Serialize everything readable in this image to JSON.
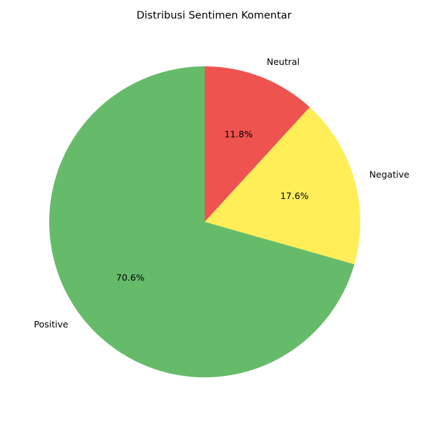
{
  "chart_data": {
    "type": "pie",
    "title": "Distribusi Sentimen Komentar",
    "slices": [
      {
        "label": "Neutral",
        "value": 11.8,
        "pct_label": "11.8%",
        "color": "#ef5350"
      },
      {
        "label": "Negative",
        "value": 17.6,
        "pct_label": "17.6%",
        "color": "#ffee58"
      },
      {
        "label": "Positive",
        "value": 70.6,
        "pct_label": "70.6%",
        "color": "#66bb6a"
      }
    ],
    "start_angle_deg": 90,
    "direction": "clockwise",
    "legend": "none"
  }
}
